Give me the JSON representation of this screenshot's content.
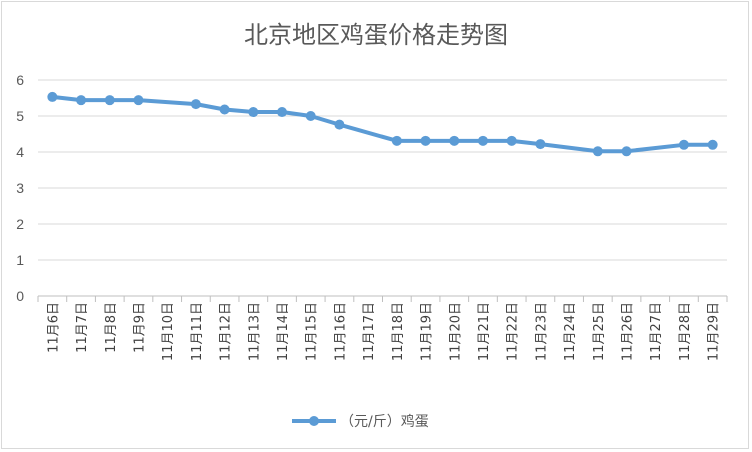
{
  "chart_data": {
    "type": "line",
    "title": "北京地区鸡蛋价格走势图",
    "xlabel": "",
    "ylabel": "",
    "ylim": [
      0,
      6
    ],
    "yticks": [
      "0",
      "1",
      "2",
      "3",
      "4",
      "5",
      "6"
    ],
    "grid": true,
    "legend": "bottom",
    "categories": [
      "11月6日",
      "11月7日",
      "11月8日",
      "11月9日",
      "11月10日",
      "11月11日",
      "11月12日",
      "11月13日",
      "11月14日",
      "11月15日",
      "11月16日",
      "11月17日",
      "11月18日",
      "11月19日",
      "11月20日",
      "11月21日",
      "11月22日",
      "11月23日",
      "11月24日",
      "11月25日",
      "11月26日",
      "11月27日",
      "11月28日",
      "11月29日"
    ],
    "series": [
      {
        "name": "（元/斤）鸡蛋",
        "color": "#5b9bd5",
        "values": [
          5.53,
          5.44,
          5.44,
          5.44,
          null,
          5.33,
          5.18,
          5.11,
          5.11,
          5.0,
          4.76,
          null,
          4.31,
          4.31,
          4.31,
          4.31,
          4.31,
          4.22,
          null,
          4.02,
          4.02,
          null,
          4.2,
          4.2
        ]
      }
    ]
  }
}
